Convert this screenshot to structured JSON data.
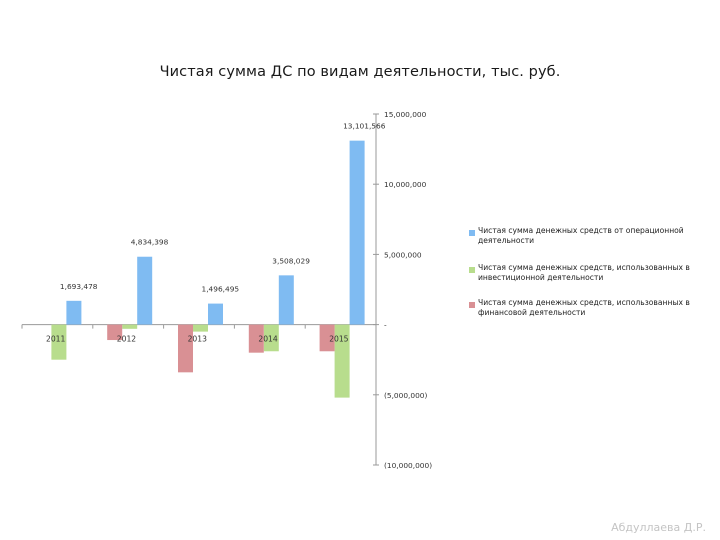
{
  "title": "Чистая сумма ДС по видам деятельности, тыс. руб.",
  "author": "Абдуллаева Д.Р.",
  "chart_data": {
    "type": "bar",
    "title": "Чистая сумма ДС по видам деятельности, тыс. руб.",
    "categories": [
      "2011",
      "2012",
      "2013",
      "2014",
      "2015"
    ],
    "series": [
      {
        "name": "Чистая сумма денежных средств, использованных в инвестиционной деятельности",
        "color": "#b8dd8d",
        "values": [
          -2500000,
          -300000,
          -500000,
          -1900000,
          -5200000
        ]
      },
      {
        "name": "Чистая сумма денежных средств от операционной деятельности",
        "color": "#7fbbf2",
        "values": [
          1693478,
          4834398,
          1496495,
          3508029,
          13101566
        ],
        "labels": [
          "1,693,478",
          "4,834,398",
          "1,496,495",
          "3,508,029",
          "13,101,566"
        ]
      },
      {
        "name": "Чистая сумма денежных средств, использованных в финансовой деятельности",
        "color": "#d99094",
        "values": [
          0,
          -1100000,
          -3400000,
          -2000000,
          -1900000
        ]
      }
    ],
    "legend_order": [
      1,
      0,
      2
    ],
    "ylim": [
      -10000000,
      15000000
    ],
    "yticks": [
      15000000,
      10000000,
      5000000,
      0,
      -5000000,
      -10000000
    ],
    "ytick_labels": [
      "15,000,000",
      "10,000,000",
      "5,000,000",
      "-",
      "(5,000,000)",
      "(10,000,000)"
    ],
    "y_axis_position": "right",
    "legend_position": "right",
    "grid": false
  }
}
